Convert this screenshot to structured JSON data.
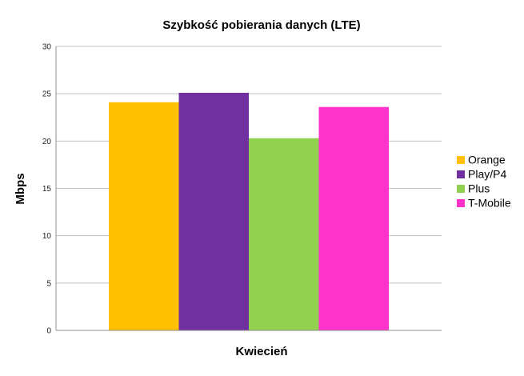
{
  "chart_data": {
    "type": "bar",
    "title": "Szybkość pobierania danych (LTE)",
    "xlabel": "Kwiecień",
    "ylabel": "Mbps",
    "categories": [
      "Kwiecień"
    ],
    "ylim": [
      0,
      30
    ],
    "yticks": [
      0,
      5,
      10,
      15,
      20,
      25,
      30
    ],
    "grid": true,
    "legend_position": "right",
    "series": [
      {
        "name": "Orange",
        "values": [
          24.1
        ],
        "color": "#FFC000"
      },
      {
        "name": "Play/P4",
        "values": [
          25.1
        ],
        "color": "#7030A0"
      },
      {
        "name": "Plus",
        "values": [
          20.3
        ],
        "color": "#92D050"
      },
      {
        "name": "T-Mobile",
        "values": [
          23.6
        ],
        "color": "#FF33CC"
      }
    ]
  }
}
